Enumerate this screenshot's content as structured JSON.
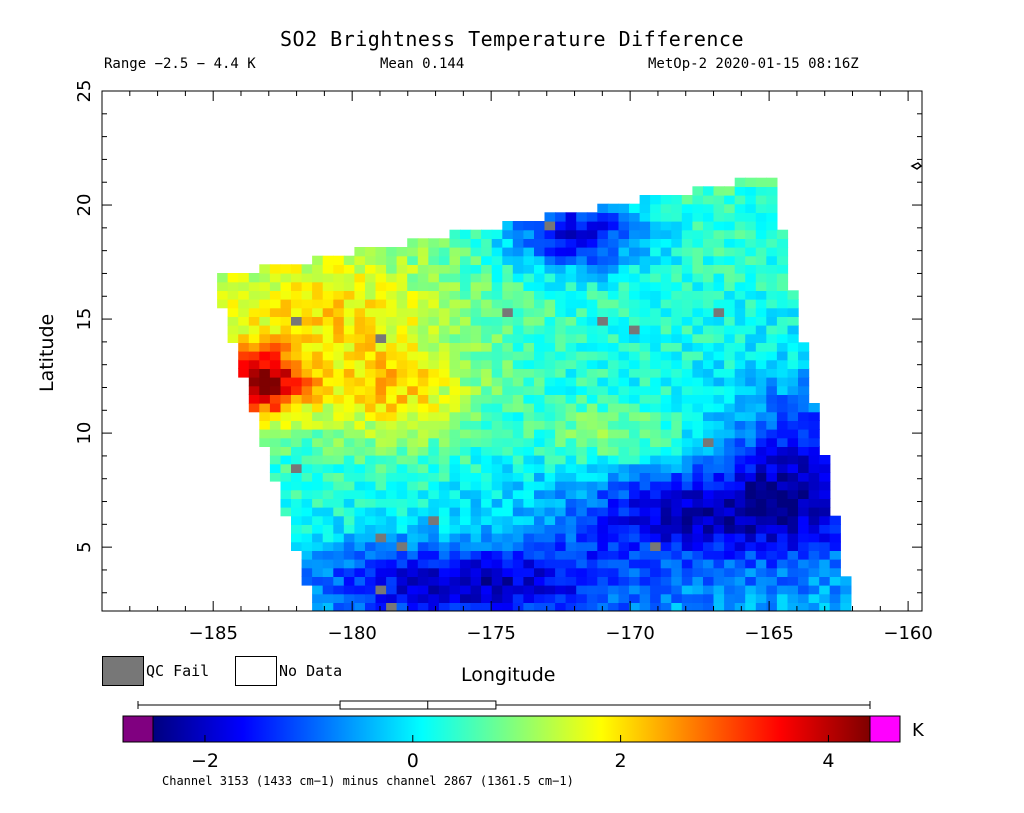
{
  "chart_data": {
    "type": "heatmap",
    "title": "SO2 Brightness Temperature Difference",
    "subtitle_range": "Range −2.5 − 4.4 K",
    "subtitle_mean": "Mean 0.144",
    "subtitle_satellite": "MetOp-2 2020-01-15 08:16Z",
    "xlabel": "Longitude",
    "ylabel": "Latitude",
    "xlim": [
      -189,
      -159.5
    ],
    "ylim": [
      2.2,
      25
    ],
    "x_ticks": [
      -185,
      -180,
      -175,
      -170,
      -165,
      -160
    ],
    "x_tick_labels": [
      "−185",
      "−180",
      "−175",
      "−170",
      "−165",
      "−160"
    ],
    "y_ticks": [
      5,
      10,
      15,
      20,
      25
    ],
    "y_tick_labels": [
      "5",
      "10",
      "15",
      "20",
      "25"
    ],
    "swath_corners": [
      [
        -185,
        16.8
      ],
      [
        -164.9,
        21.3
      ],
      [
        -162.0,
        2.2
      ],
      [
        -181.3,
        2.2
      ]
    ],
    "features": [
      {
        "kind": "high",
        "center": [
          -183.2,
          12.2
        ],
        "amp": 3.4,
        "sx": 1.6,
        "sy": 1.6
      },
      {
        "kind": "high",
        "center": [
          -178.5,
          11.8
        ],
        "amp": 1.6,
        "sx": 3.0,
        "sy": 2.4
      },
      {
        "kind": "high",
        "center": [
          -181,
          15.5
        ],
        "amp": 1.2,
        "sx": 4.5,
        "sy": 2.5
      },
      {
        "kind": "high",
        "center": [
          -170.5,
          10.0
        ],
        "amp": 0.9,
        "sx": 2.5,
        "sy": 1.4
      },
      {
        "kind": "low",
        "center": [
          -172,
          18.8
        ],
        "amp": -2.4,
        "sx": 2.6,
        "sy": 1.7
      },
      {
        "kind": "low",
        "center": [
          -176,
          3.5
        ],
        "amp": -2.0,
        "sx": 6.0,
        "sy": 1.8
      },
      {
        "kind": "low",
        "center": [
          -168,
          6.5
        ],
        "amp": -1.8,
        "sx": 4.5,
        "sy": 2.0
      },
      {
        "kind": "low",
        "center": [
          -164,
          8.5
        ],
        "amp": -1.6,
        "sx": 2.5,
        "sy": 3.5
      }
    ],
    "color_scale": {
      "min": -2.5,
      "max": 4.4,
      "ticks": [
        -2,
        0,
        2,
        4
      ],
      "tick_labels": [
        "−2",
        "0",
        "2",
        "4"
      ],
      "stops": [
        "#00007f",
        "#0000ff",
        "#007fff",
        "#00ffff",
        "#7fff7f",
        "#ffff00",
        "#ff7f00",
        "#ff0000",
        "#7f0000"
      ],
      "under_color": "#800080",
      "over_color": "#ff00ff",
      "unit": "K"
    },
    "boxplot": {
      "whisker_low": -2.5,
      "q1": -0.7,
      "median": 0.144,
      "q3": 0.8,
      "whisker_high": 4.4
    },
    "legend": {
      "qc_fail_label": "QC Fail",
      "qc_fail_color": "#777777",
      "no_data_label": "No Data",
      "no_data_color": "#ffffff"
    },
    "caption": "Channel 3153 (1433 cm−1) minus channel 2867 (1361.5 cm−1)"
  }
}
